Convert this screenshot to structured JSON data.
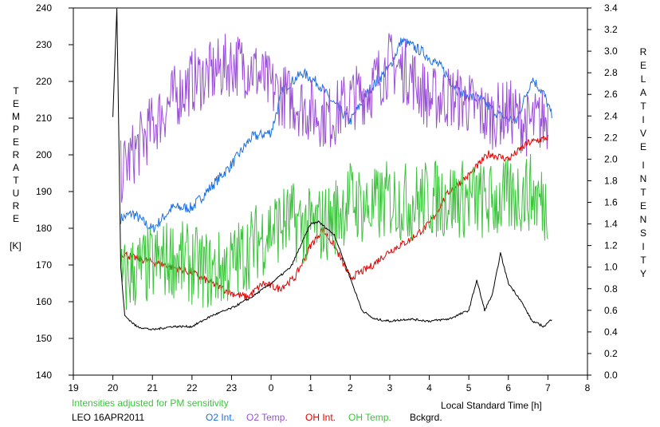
{
  "chart_data": {
    "type": "line",
    "title": "",
    "xlabel": "Local Standard Time [h]",
    "x_ticks": [
      "19",
      "20",
      "21",
      "22",
      "23",
      "0",
      "1",
      "2",
      "3",
      "4",
      "5",
      "6",
      "7",
      "8"
    ],
    "xlim": [
      19,
      32
    ],
    "y_left": {
      "label_letters": [
        "T",
        "E",
        "M",
        "P",
        "E",
        "R",
        "A",
        "T",
        "U",
        "R",
        "E"
      ],
      "unit": "[K]",
      "range": [
        140,
        240
      ],
      "ticks": [
        "140",
        "150",
        "160",
        "170",
        "180",
        "190",
        "200",
        "210",
        "220",
        "230",
        "240"
      ]
    },
    "y_right": {
      "label_word1": [
        "R",
        "E",
        "L",
        "A",
        "T",
        "I",
        "V",
        "E"
      ],
      "label_word2": [
        "I",
        "N",
        "T",
        "E",
        "N",
        "S",
        "I",
        "T",
        "Y"
      ],
      "range": [
        0.0,
        3.4
      ],
      "ticks": [
        "0.0",
        "0.2",
        "0.4",
        "0.6",
        "0.8",
        "1.0",
        "1.2",
        "1.4",
        "1.6",
        "1.8",
        "2.0",
        "2.2",
        "2.4",
        "2.6",
        "2.8",
        "3.0",
        "3.2",
        "3.4"
      ]
    },
    "note": "Intensities adjusted for PM sensitivity",
    "station": "LEO 16APR2011",
    "grid": false,
    "legend_position": "bottom",
    "series": [
      {
        "name": "O2 Int.",
        "color": "#1e6fe0",
        "axis": "right",
        "x": [
          20.2,
          20.5,
          21.0,
          21.5,
          22.0,
          22.5,
          23.0,
          23.5,
          24.0,
          24.3,
          24.8,
          25.2,
          25.5,
          26.0,
          26.5,
          27.0,
          27.3,
          27.8,
          28.3,
          28.8,
          29.3,
          29.8,
          30.2,
          30.6,
          30.9,
          31.1
        ],
        "y": [
          1.45,
          1.5,
          1.35,
          1.55,
          1.55,
          1.75,
          1.95,
          2.2,
          2.25,
          2.65,
          2.8,
          2.7,
          2.55,
          2.35,
          2.65,
          2.85,
          3.1,
          3.0,
          2.85,
          2.6,
          2.55,
          2.4,
          2.35,
          2.75,
          2.6,
          2.4
        ],
        "noise": 0.05
      },
      {
        "name": "O2 Temp.",
        "color": "#9b4fd8",
        "axis": "left",
        "x": [
          20.2,
          20.5,
          21.0,
          21.5,
          22.0,
          22.5,
          23.0,
          23.5,
          24.0,
          24.5,
          25.0,
          25.5,
          26.0,
          26.5,
          27.0,
          27.5,
          28.0,
          28.5,
          29.0,
          29.5,
          30.0,
          30.5,
          31.0
        ],
        "y": [
          195,
          200,
          208,
          215,
          220,
          222,
          225,
          224,
          218,
          215,
          212,
          210,
          215,
          218,
          225,
          222,
          215,
          216,
          214,
          210,
          212,
          208,
          210
        ],
        "noise": 9
      },
      {
        "name": "OH Int.",
        "color": "#e00000",
        "axis": "right",
        "x": [
          20.2,
          20.5,
          21.0,
          21.5,
          22.0,
          22.5,
          23.0,
          23.4,
          23.8,
          24.2,
          24.6,
          25.0,
          25.3,
          25.6,
          26.0,
          26.5,
          27.0,
          27.5,
          28.0,
          28.5,
          29.0,
          29.5,
          30.0,
          30.5,
          31.0
        ],
        "y": [
          1.13,
          1.09,
          1.05,
          1.0,
          0.95,
          0.85,
          0.76,
          0.72,
          0.85,
          0.8,
          0.9,
          1.2,
          1.35,
          1.2,
          0.9,
          1.0,
          1.15,
          1.25,
          1.4,
          1.7,
          1.85,
          2.05,
          2.0,
          2.15,
          2.2
        ],
        "noise": 0.035
      },
      {
        "name": "OH Temp.",
        "color": "#3cc43c",
        "axis": "left",
        "x": [
          20.2,
          20.5,
          21.0,
          21.5,
          22.0,
          22.5,
          23.0,
          23.5,
          24.0,
          24.5,
          25.0,
          25.5,
          26.0,
          26.5,
          27.0,
          27.5,
          28.0,
          28.5,
          29.0,
          29.5,
          30.0,
          30.5,
          31.0
        ],
        "y": [
          165,
          168,
          170,
          172,
          170,
          168,
          170,
          175,
          180,
          182,
          180,
          182,
          188,
          185,
          188,
          187,
          188,
          188,
          188,
          187,
          188,
          190,
          186
        ],
        "noise": 11
      },
      {
        "name": "Bckgrd.",
        "color": "#000000",
        "axis": "right",
        "x": [
          20.0,
          20.1,
          20.2,
          20.3,
          20.6,
          21.0,
          21.5,
          22.0,
          22.5,
          23.0,
          23.5,
          24.0,
          24.5,
          25.0,
          25.2,
          25.6,
          26.0,
          26.3,
          26.6,
          27.0,
          27.5,
          28.0,
          28.5,
          29.0,
          29.2,
          29.4,
          29.6,
          29.8,
          30.0,
          30.3,
          30.6,
          30.9,
          31.1
        ],
        "y": [
          2.4,
          3.4,
          1.0,
          0.55,
          0.45,
          0.42,
          0.45,
          0.45,
          0.55,
          0.62,
          0.72,
          0.85,
          1.0,
          1.4,
          1.42,
          1.3,
          0.9,
          0.6,
          0.52,
          0.5,
          0.52,
          0.5,
          0.52,
          0.6,
          0.88,
          0.6,
          0.75,
          1.13,
          0.85,
          0.7,
          0.5,
          0.45,
          0.52
        ],
        "noise": 0.01
      }
    ]
  }
}
